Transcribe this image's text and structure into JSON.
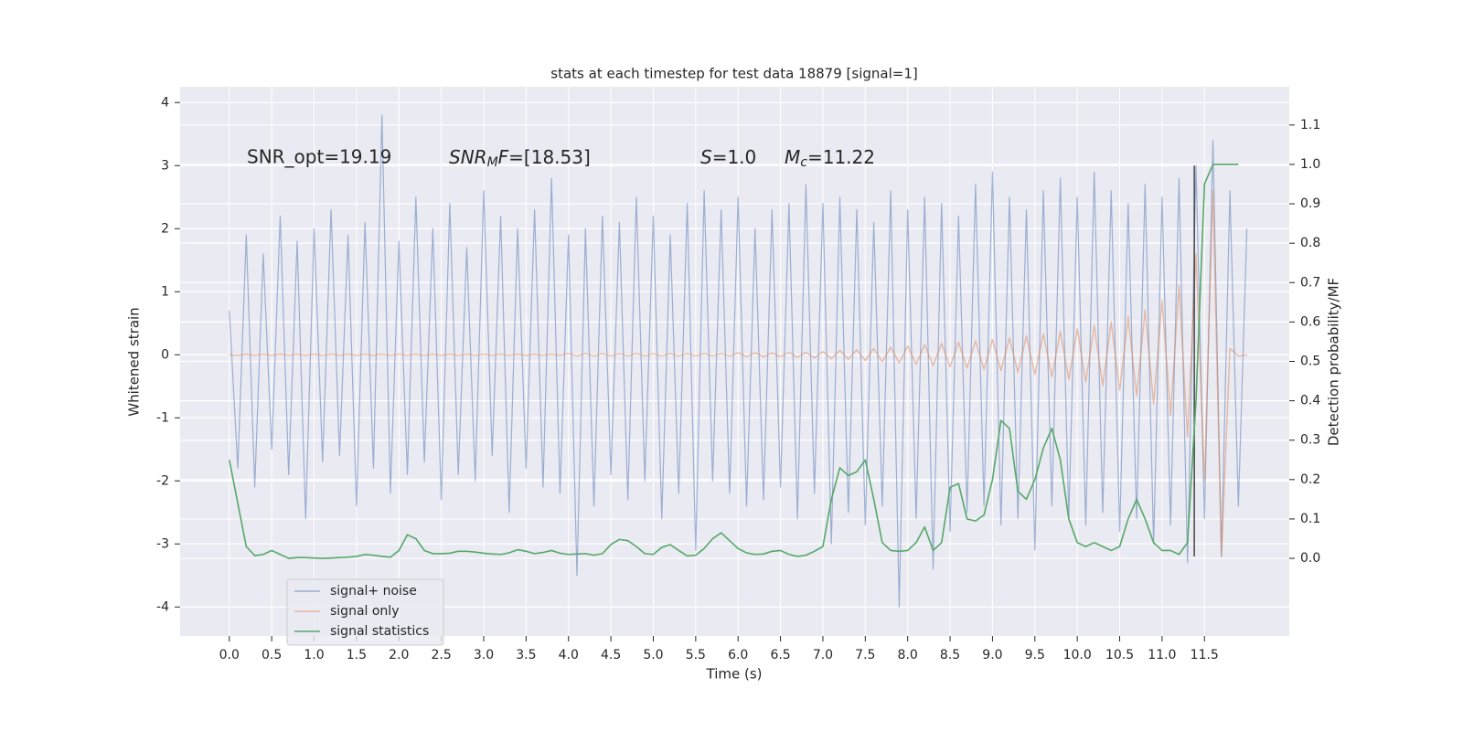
{
  "chart_data": {
    "type": "line",
    "title": "stats at each timestep for test data 18879 [signal=1]",
    "x_label": "Time (s)",
    "y_label": "Whitened strain",
    "y2_label": "Detection probability/MF",
    "annotations": [
      {
        "text": "SNR_opt=19.19"
      },
      {
        "parts": [
          "SNR",
          "M",
          "F",
          "=[18.53]"
        ]
      },
      {
        "parts": [
          "S",
          "=1.0"
        ]
      },
      {
        "parts": [
          "M",
          "c",
          "=11.22"
        ]
      }
    ],
    "xlim": [
      -0.58,
      12.5
    ],
    "ylim": [
      -4.46,
      4.25
    ],
    "y2lim": [
      -0.197,
      1.197
    ],
    "xticks": [
      {
        "value": 0,
        "label": "0.0"
      },
      0.5,
      {
        "value": 1,
        "label": "1.0"
      },
      1.5,
      {
        "value": 2,
        "label": "2.0"
      },
      2.5,
      {
        "value": 3,
        "label": "3.0"
      },
      3.5,
      {
        "value": 4,
        "label": "4.0"
      },
      4.5,
      {
        "value": 5,
        "label": "5.0"
      },
      5.5,
      {
        "value": 6,
        "label": "6.0"
      },
      6.5,
      {
        "value": 7,
        "label": "7.0"
      },
      7.5,
      {
        "value": 8,
        "label": "8.0"
      },
      8.5,
      {
        "value": 9,
        "label": "9.0"
      },
      9.5,
      {
        "value": 10,
        "label": "10.0"
      },
      10.5,
      {
        "value": 11,
        "label": "11.0"
      },
      11.5
    ],
    "yticks": [
      -4,
      -3,
      -2,
      -1,
      0,
      1,
      2,
      3,
      4
    ],
    "y2ticks": [
      {
        "value": 0,
        "label": "0.0"
      },
      0.1,
      0.2,
      0.3,
      0.4,
      0.5,
      0.6,
      0.7,
      0.8,
      0.9,
      {
        "value": 1,
        "label": "1.0"
      },
      1.1
    ],
    "grid": true,
    "legend": "lower left",
    "x": [
      0,
      0.1,
      0.2,
      0.3,
      0.4,
      0.5,
      0.6,
      0.7,
      0.8,
      0.9,
      1,
      1.1,
      1.2,
      1.3,
      1.4,
      1.5,
      1.6,
      1.7,
      1.8,
      1.9,
      2,
      2.1,
      2.2,
      2.3,
      2.4,
      2.5,
      2.6,
      2.7,
      2.8,
      2.9,
      3,
      3.1,
      3.2,
      3.3,
      3.4,
      3.5,
      3.6,
      3.7,
      3.8,
      3.9,
      4,
      4.1,
      4.2,
      4.3,
      4.4,
      4.5,
      4.6,
      4.7,
      4.8,
      4.9,
      5,
      5.1,
      5.2,
      5.3,
      5.4,
      5.5,
      5.6,
      5.7,
      5.8,
      5.9,
      6,
      6.1,
      6.2,
      6.3,
      6.4,
      6.5,
      6.6,
      6.7,
      6.8,
      6.9,
      7,
      7.1,
      7.2,
      7.3,
      7.4,
      7.5,
      7.6,
      7.7,
      7.8,
      7.9,
      8,
      8.1,
      8.2,
      8.3,
      8.4,
      8.5,
      8.6,
      8.7,
      8.8,
      8.9,
      9,
      9.1,
      9.2,
      9.3,
      9.4,
      9.5,
      9.6,
      9.7,
      9.8,
      9.9,
      10,
      10.1,
      10.2,
      10.3,
      10.4,
      10.5,
      10.6,
      10.7,
      10.8,
      10.9,
      11,
      11.1,
      11.2,
      11.3,
      11.4,
      11.5,
      11.6,
      11.7,
      11.8,
      11.9,
      12
    ],
    "series": [
      {
        "name": "signal+ noise",
        "color": "#4c72b0",
        "values": [
          0.7,
          -1.8,
          1.9,
          -2.1,
          1.6,
          -1.5,
          2.2,
          -1.9,
          1.8,
          -2.6,
          2.0,
          -1.7,
          2.3,
          -1.6,
          1.9,
          -2.4,
          2.1,
          -1.8,
          3.8,
          -2.2,
          1.8,
          -1.9,
          2.5,
          -1.7,
          2.0,
          -2.3,
          2.4,
          -1.9,
          1.7,
          -2.0,
          2.6,
          -1.6,
          2.2,
          -2.5,
          2.0,
          -1.8,
          2.3,
          -2.1,
          2.8,
          -2.2,
          1.9,
          -3.5,
          2.0,
          -2.4,
          2.2,
          -1.9,
          2.1,
          -2.3,
          2.5,
          -2.0,
          2.2,
          -2.6,
          1.9,
          -2.2,
          2.4,
          -3.1,
          2.6,
          -2.0,
          2.3,
          -2.2,
          2.5,
          -2.4,
          2.0,
          -2.3,
          2.3,
          -2.1,
          2.4,
          -2.6,
          2.7,
          -2.2,
          2.4,
          -3.0,
          2.5,
          -2.5,
          2.3,
          -2.7,
          2.1,
          -2.4,
          2.6,
          -4.0,
          2.3,
          -2.6,
          2.5,
          -3.4,
          2.4,
          -2.8,
          2.2,
          -2.5,
          2.7,
          -2.4,
          2.9,
          -2.7,
          2.5,
          -2.6,
          2.3,
          -3.1,
          2.6,
          -2.4,
          2.8,
          -2.6,
          2.5,
          -2.7,
          2.9,
          -2.5,
          2.6,
          -2.8,
          2.4,
          -2.6,
          2.7,
          -3.0,
          2.5,
          -2.7,
          2.8,
          -3.3,
          3.0,
          -2.6,
          3.4,
          -3.2,
          2.6,
          -2.4,
          2.0
        ]
      },
      {
        "name": "signal only",
        "color": "#dd8452",
        "values": [
          0,
          -0.01,
          0.01,
          -0.01,
          0.01,
          -0.01,
          0.01,
          -0.01,
          0.01,
          -0.01,
          0.01,
          -0.01,
          0.01,
          -0.01,
          0.01,
          -0.01,
          0.01,
          -0.01,
          0.01,
          -0.01,
          0.01,
          -0.01,
          0.01,
          -0.01,
          0.01,
          -0.01,
          0.01,
          -0.01,
          0.01,
          -0.01,
          0.01,
          -0.01,
          0.01,
          -0.01,
          0.01,
          -0.01,
          0.01,
          -0.01,
          0.01,
          -0.01,
          0.02,
          -0.02,
          0.02,
          -0.02,
          0.02,
          -0.02,
          0.02,
          -0.02,
          0.02,
          -0.02,
          0.02,
          -0.02,
          0.02,
          -0.02,
          0.02,
          -0.02,
          0.02,
          -0.02,
          0.02,
          -0.02,
          0.03,
          -0.03,
          0.03,
          -0.03,
          0.03,
          -0.03,
          0.04,
          -0.04,
          0.04,
          -0.05,
          0.05,
          -0.06,
          0.07,
          -0.07,
          0.08,
          -0.09,
          0.1,
          -0.11,
          0.12,
          -0.13,
          0.14,
          -0.15,
          0.16,
          -0.17,
          0.18,
          -0.19,
          0.2,
          -0.21,
          0.22,
          -0.23,
          0.24,
          -0.25,
          0.27,
          -0.28,
          0.3,
          -0.31,
          0.33,
          -0.35,
          0.37,
          -0.39,
          0.41,
          -0.43,
          0.46,
          -0.49,
          0.52,
          -0.56,
          0.6,
          -0.65,
          0.71,
          -0.78,
          0.86,
          -0.96,
          1.1,
          -1.3,
          1.6,
          -2.0,
          2.6,
          -3.2,
          0.1,
          -0.02,
          0
        ]
      },
      {
        "name": "signal statistics",
        "color": "#55a868",
        "axis": "y2",
        "values": [
          0.25,
          0.14,
          0.03,
          0.007,
          0.01,
          0.02,
          0.01,
          0,
          0.002,
          0.002,
          0.001,
          0,
          0.001,
          0.002,
          0.003,
          0.005,
          0.01,
          0.008,
          0.005,
          0.003,
          0.02,
          0.06,
          0.05,
          0.02,
          0.012,
          0.012,
          0.013,
          0.018,
          0.018,
          0.016,
          0.013,
          0.011,
          0.01,
          0.014,
          0.022,
          0.018,
          0.012,
          0.015,
          0.02,
          0.013,
          0.01,
          0.011,
          0.012,
          0.008,
          0.012,
          0.035,
          0.048,
          0.045,
          0.03,
          0.012,
          0.01,
          0.028,
          0.035,
          0.02,
          0.006,
          0.008,
          0.025,
          0.05,
          0.065,
          0.045,
          0.025,
          0.014,
          0.01,
          0.011,
          0.018,
          0.02,
          0.01,
          0.005,
          0.008,
          0.018,
          0.03,
          0.15,
          0.23,
          0.21,
          0.22,
          0.25,
          0.15,
          0.04,
          0.02,
          0.018,
          0.02,
          0.04,
          0.08,
          0.02,
          0.04,
          0.18,
          0.19,
          0.1,
          0.095,
          0.11,
          0.2,
          0.35,
          0.33,
          0.17,
          0.15,
          0.2,
          0.28,
          0.33,
          0.25,
          0.1,
          0.04,
          0.03,
          0.04,
          0.03,
          0.02,
          0.03,
          0.1,
          0.15,
          0.1,
          0.04,
          0.02,
          0.02,
          0.01,
          0.04,
          0.4,
          0.95,
          1.0,
          1.0,
          1.0,
          1.0,
          null
        ]
      }
    ],
    "vline": {
      "x": 11.38,
      "ymin": -3.2,
      "ymax": 3.0,
      "color": "#444444"
    }
  }
}
